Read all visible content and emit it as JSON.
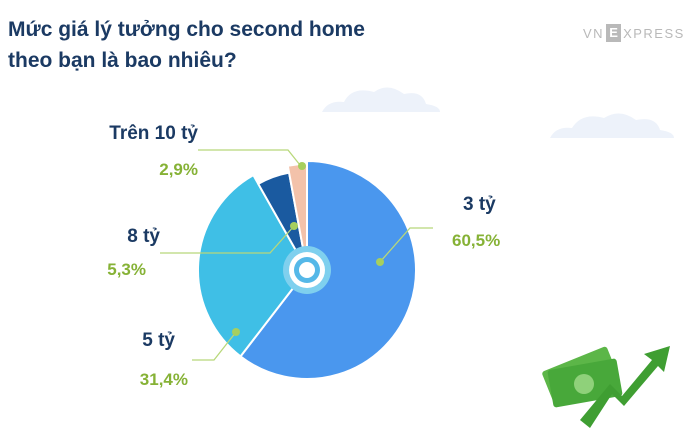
{
  "title_line1": "Mức giá lý tưởng cho second home",
  "title_line2": "theo bạn là bao nhiêu?",
  "brand": {
    "left": "VN",
    "mark": "E",
    "right": "XPRESS"
  },
  "colors": {
    "title": "#1b3a63",
    "value_text": "#86b236",
    "leader_line": "#b8d87a",
    "brand": "#b9b9b9"
  },
  "chart_data": {
    "type": "pie",
    "title": "Mức giá lý tưởng cho second home theo bạn là bao nhiêu?",
    "unit": "%",
    "slices": [
      {
        "label": "3 tỷ",
        "value": 60.5,
        "value_label": "60,5%",
        "color": "#4a97ee"
      },
      {
        "label": "5 tỷ",
        "value": 31.4,
        "value_label": "31,4%",
        "color": "#3fbfe6"
      },
      {
        "label": "8 tỷ",
        "value": 5.3,
        "value_label": "5,3%",
        "color": "#1a5aa0"
      },
      {
        "label": "Trên 10 tỷ",
        "value": 2.9,
        "value_label": "2,9%",
        "color": "#f3c2aa"
      }
    ]
  }
}
